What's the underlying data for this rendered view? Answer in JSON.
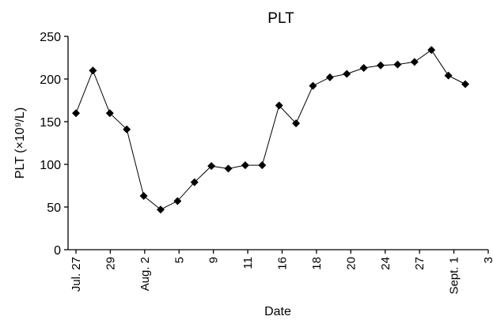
{
  "chart_data": {
    "type": "line",
    "title": "PLT",
    "xlabel": "Date",
    "ylabel": "PLT (×10⁹/L)",
    "ylim": [
      0,
      250
    ],
    "yticks": [
      0,
      50,
      100,
      150,
      200,
      250
    ],
    "x_tick_labels": [
      "Jul. 27",
      "29",
      "Aug. 2",
      "5",
      "9",
      "11",
      "16",
      "18",
      "20",
      "24",
      "27",
      "Sept. 1",
      "3"
    ],
    "grid": false,
    "legend": "none",
    "marker": "diamond",
    "color": "#000000",
    "series": [
      {
        "values": [
          160,
          210,
          160,
          141,
          63,
          47,
          57,
          79,
          98,
          95,
          99,
          99,
          169,
          148,
          192,
          202,
          206,
          213,
          216,
          217,
          220,
          234,
          204,
          194
        ]
      }
    ]
  }
}
